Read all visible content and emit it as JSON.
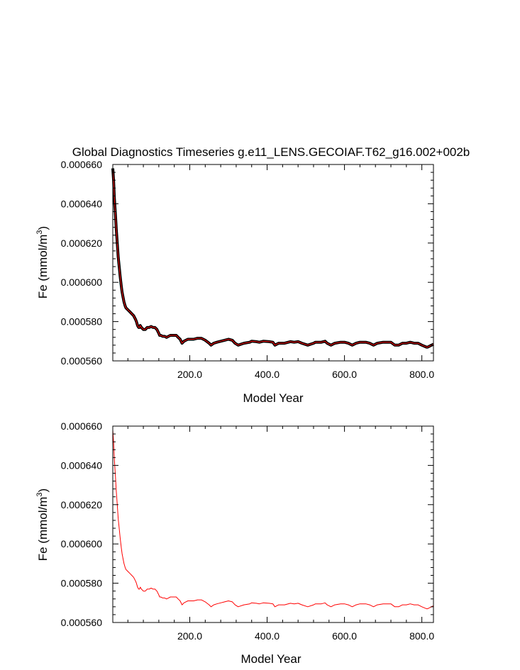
{
  "figure": {
    "title": "Global Diagnostics Timeseries g.e11_LENS.GECOIAF.T62_g16.002+002b"
  },
  "colors": {
    "series_red": "#ff0000",
    "series_black": "#000000",
    "axis": "#000000",
    "background": "#ffffff"
  },
  "chart_data": [
    {
      "type": "line",
      "title": "Global Diagnostics Timeseries g.e11_LENS.GECOIAF.T62_g16.002+002b",
      "xlabel": "Model Year",
      "ylabel": "Fe (mmol/m3)",
      "ylabel_base": "Fe (mmol/m",
      "ylabel_sup": "3",
      "ylabel_close": ")",
      "xlim": [
        1,
        830
      ],
      "ylim": [
        0.00056,
        0.00066
      ],
      "xticks": [
        200,
        400,
        600,
        800
      ],
      "xtick_labels": [
        "200.0",
        "400.0",
        "600.0",
        "800.0"
      ],
      "yticks": [
        0.00056,
        0.00058,
        0.0006,
        0.00062,
        0.00064,
        0.00066
      ],
      "ytick_labels": [
        "0.000560",
        "0.000580",
        "0.000600",
        "0.000620",
        "0.000640",
        "0.000660"
      ],
      "grid": false,
      "legend": false,
      "series": [
        {
          "color": "#000000",
          "style": "band",
          "x": [
            1,
            3,
            5,
            8,
            10,
            13,
            15,
            18,
            20,
            23,
            25,
            28,
            30,
            33,
            35,
            40,
            45,
            50,
            55,
            60,
            62,
            65,
            68,
            70,
            72,
            75,
            80,
            85,
            90,
            95,
            100,
            105,
            110,
            115,
            120,
            122,
            125,
            130,
            135,
            140,
            145,
            150,
            155,
            160,
            165,
            170,
            175,
            180,
            185,
            190,
            195,
            200,
            210,
            220,
            230,
            240,
            250,
            255,
            262,
            270,
            280,
            290,
            300,
            310,
            317,
            325,
            340,
            355,
            360,
            372,
            380,
            390,
            405,
            415,
            420,
            430,
            445,
            460,
            470,
            480,
            490,
            505,
            520,
            525,
            540,
            550,
            555,
            565,
            575,
            590,
            600,
            610,
            620,
            630,
            640,
            655,
            665,
            675,
            685,
            700,
            710,
            720,
            730,
            740,
            750,
            760,
            770,
            780,
            790,
            800,
            812,
            815,
            825,
            830
          ],
          "y": [
            0.000658,
            0.000652,
            0.000643,
            0.000634,
            0.000627,
            0.000619,
            0.000613,
            0.000607,
            0.000603,
            0.000598,
            0.000595,
            0.000592,
            0.00059,
            0.000588,
            0.000587,
            0.000586,
            0.000585,
            0.000584,
            0.000583,
            0.000581,
            0.00058,
            0.000578,
            0.000577,
            0.000577,
            0.000578,
            0.000577,
            0.000576,
            0.000576,
            0.000577,
            0.000577,
            0.0005775,
            0.000577,
            0.000577,
            0.000576,
            0.000574,
            0.000573,
            0.000573,
            0.0005725,
            0.0005725,
            0.000572,
            0.0005725,
            0.000573,
            0.000573,
            0.000573,
            0.000573,
            0.000572,
            0.000571,
            0.000569,
            0.00057,
            0.0005705,
            0.000571,
            0.000571,
            0.000571,
            0.0005715,
            0.0005715,
            0.0005705,
            0.000569,
            0.000568,
            0.000569,
            0.0005695,
            0.00057,
            0.0005705,
            0.000571,
            0.0005705,
            0.000569,
            0.000568,
            0.000569,
            0.0005695,
            0.00057,
            0.0005698,
            0.0005695,
            0.00057,
            0.0005698,
            0.0005695,
            0.000568,
            0.000569,
            0.000569,
            0.0005698,
            0.0005695,
            0.0005698,
            0.000569,
            0.000568,
            0.000569,
            0.0005695,
            0.0005695,
            0.00057,
            0.000569,
            0.000568,
            0.000569,
            0.0005695,
            0.0005695,
            0.000569,
            0.000568,
            0.000569,
            0.0005695,
            0.0005695,
            0.000569,
            0.000568,
            0.000569,
            0.0005695,
            0.0005695,
            0.0005695,
            0.000568,
            0.000568,
            0.000569,
            0.000569,
            0.0005695,
            0.000569,
            0.000569,
            0.000568,
            0.000567,
            0.000567,
            0.000568,
            0.0005685
          ]
        },
        {
          "color": "#ff0000",
          "style": "line",
          "x": [
            1,
            3,
            5,
            8,
            10,
            13,
            15,
            18,
            20,
            23,
            25,
            28,
            30,
            33,
            35,
            40,
            45,
            50,
            55,
            60,
            62,
            65,
            68,
            70,
            72,
            75,
            80,
            85,
            90,
            95,
            100,
            105,
            110,
            115,
            120,
            122,
            125,
            130,
            135,
            140,
            145,
            150,
            155,
            160,
            165,
            170,
            175,
            180,
            185,
            190,
            195,
            200,
            210,
            220,
            230,
            240,
            250,
            255,
            262,
            270,
            280,
            290,
            300,
            310,
            317,
            325,
            340,
            355,
            360,
            372,
            380,
            390,
            405,
            415,
            420,
            430,
            445,
            460,
            470,
            480,
            490,
            505,
            520,
            525,
            540,
            550,
            555,
            565,
            575,
            590,
            600,
            610,
            620,
            630,
            640,
            655,
            665,
            675,
            685,
            700,
            710,
            720,
            730,
            740,
            750,
            760,
            770,
            780,
            790,
            800,
            812,
            815,
            825,
            830
          ],
          "y": [
            0.000658,
            0.000652,
            0.000643,
            0.000634,
            0.000627,
            0.000619,
            0.000613,
            0.000607,
            0.000603,
            0.000598,
            0.000595,
            0.000592,
            0.00059,
            0.000588,
            0.000587,
            0.000586,
            0.000585,
            0.000584,
            0.000583,
            0.000581,
            0.00058,
            0.000578,
            0.000577,
            0.000577,
            0.000578,
            0.000577,
            0.000576,
            0.000576,
            0.000577,
            0.000577,
            0.0005775,
            0.000577,
            0.000577,
            0.000576,
            0.000574,
            0.000573,
            0.000573,
            0.0005725,
            0.0005725,
            0.000572,
            0.0005725,
            0.000573,
            0.000573,
            0.000573,
            0.000573,
            0.000572,
            0.000571,
            0.000569,
            0.00057,
            0.0005705,
            0.000571,
            0.000571,
            0.000571,
            0.0005715,
            0.0005715,
            0.0005705,
            0.000569,
            0.000568,
            0.000569,
            0.0005695,
            0.00057,
            0.0005705,
            0.000571,
            0.0005705,
            0.000569,
            0.000568,
            0.000569,
            0.0005695,
            0.00057,
            0.0005698,
            0.0005695,
            0.00057,
            0.0005698,
            0.0005695,
            0.000568,
            0.000569,
            0.000569,
            0.0005698,
            0.0005695,
            0.0005698,
            0.000569,
            0.000568,
            0.000569,
            0.0005695,
            0.0005695,
            0.00057,
            0.000569,
            0.000568,
            0.000569,
            0.0005695,
            0.0005695,
            0.000569,
            0.000568,
            0.000569,
            0.0005695,
            0.0005695,
            0.000569,
            0.000568,
            0.000569,
            0.0005695,
            0.0005695,
            0.0005695,
            0.000568,
            0.000568,
            0.000569,
            0.000569,
            0.0005695,
            0.000569,
            0.000569,
            0.000568,
            0.000567,
            0.000567,
            0.000568,
            0.0005685
          ]
        }
      ]
    },
    {
      "type": "line",
      "title": "",
      "xlabel": "Model Year",
      "ylabel": "Fe (mmol/m3)",
      "ylabel_base": "Fe (mmol/m",
      "ylabel_sup": "3",
      "ylabel_close": ")",
      "xlim": [
        1,
        830
      ],
      "ylim": [
        0.00056,
        0.00066
      ],
      "xticks": [
        200,
        400,
        600,
        800
      ],
      "xtick_labels": [
        "200.0",
        "400.0",
        "600.0",
        "800.0"
      ],
      "yticks": [
        0.00056,
        0.00058,
        0.0006,
        0.00062,
        0.00064,
        0.00066
      ],
      "ytick_labels": [
        "0.000560",
        "0.000580",
        "0.000600",
        "0.000620",
        "0.000640",
        "0.000660"
      ],
      "grid": false,
      "legend": false,
      "series": [
        {
          "color": "#ff0000",
          "style": "line",
          "x": [
            1,
            3,
            5,
            8,
            10,
            13,
            15,
            18,
            20,
            23,
            25,
            28,
            30,
            33,
            35,
            40,
            45,
            50,
            55,
            60,
            62,
            65,
            68,
            70,
            72,
            75,
            80,
            85,
            90,
            95,
            100,
            105,
            110,
            115,
            120,
            122,
            125,
            130,
            135,
            140,
            145,
            150,
            155,
            160,
            165,
            170,
            175,
            180,
            185,
            190,
            195,
            200,
            210,
            220,
            230,
            240,
            250,
            255,
            262,
            270,
            280,
            290,
            300,
            310,
            317,
            325,
            340,
            355,
            360,
            372,
            380,
            390,
            405,
            415,
            420,
            430,
            445,
            460,
            470,
            480,
            490,
            505,
            520,
            525,
            540,
            550,
            555,
            565,
            575,
            590,
            600,
            610,
            620,
            630,
            640,
            655,
            665,
            675,
            685,
            700,
            710,
            720,
            730,
            740,
            750,
            760,
            770,
            780,
            790,
            800,
            812,
            815,
            825,
            830
          ],
          "y": [
            0.000658,
            0.000652,
            0.000643,
            0.000634,
            0.000627,
            0.000619,
            0.000613,
            0.000607,
            0.000603,
            0.000598,
            0.000595,
            0.000592,
            0.00059,
            0.000588,
            0.000587,
            0.000586,
            0.000585,
            0.000584,
            0.000583,
            0.000581,
            0.00058,
            0.000578,
            0.000577,
            0.000577,
            0.000578,
            0.000577,
            0.000576,
            0.000576,
            0.000577,
            0.000577,
            0.0005775,
            0.000577,
            0.000577,
            0.000576,
            0.000574,
            0.000573,
            0.000573,
            0.0005725,
            0.0005725,
            0.000572,
            0.0005725,
            0.000573,
            0.000573,
            0.000573,
            0.000573,
            0.000572,
            0.000571,
            0.000569,
            0.00057,
            0.0005705,
            0.000571,
            0.000571,
            0.000571,
            0.0005715,
            0.0005715,
            0.0005705,
            0.000569,
            0.000568,
            0.000569,
            0.0005695,
            0.00057,
            0.0005705,
            0.000571,
            0.0005705,
            0.000569,
            0.000568,
            0.000569,
            0.0005695,
            0.00057,
            0.0005698,
            0.0005695,
            0.00057,
            0.0005698,
            0.0005695,
            0.000568,
            0.000569,
            0.000569,
            0.0005698,
            0.0005695,
            0.0005698,
            0.000569,
            0.000568,
            0.000569,
            0.0005695,
            0.0005695,
            0.00057,
            0.000569,
            0.000568,
            0.000569,
            0.0005695,
            0.0005695,
            0.000569,
            0.000568,
            0.000569,
            0.0005695,
            0.0005695,
            0.000569,
            0.000568,
            0.000569,
            0.0005695,
            0.0005695,
            0.0005695,
            0.000568,
            0.000568,
            0.000569,
            0.000569,
            0.0005695,
            0.000569,
            0.000569,
            0.000568,
            0.000567,
            0.000567,
            0.000568,
            0.0005685
          ]
        }
      ]
    }
  ]
}
